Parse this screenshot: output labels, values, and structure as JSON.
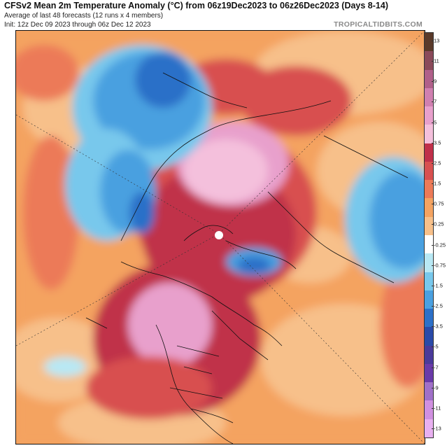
{
  "header": {
    "title": "CFSv2 Mean 2m Temperature Anomaly (°C) from 06z19Dec2023 to 06z26Dec2023 (Days 8-14)",
    "subtitle": "Average of last 48 forecasts (12 runs x 4 members)",
    "init": "Init: 12z Dec 09 2023 through 06z Dec 12 2023",
    "credit": "TROPICALTIDBITS.COM"
  },
  "map": {
    "projection": "polar-stereographic",
    "center": "north-pole",
    "pole_marker_color": "#ffffff"
  },
  "colorbar": {
    "ticks": [
      "13",
      "11",
      "9",
      "7",
      "5",
      "3.5",
      "2.5",
      "1.5",
      "0.75",
      "0.25",
      "-0.25",
      "-0.75",
      "-1.5",
      "-2.5",
      "-3.5",
      "-5",
      "-7",
      "-9",
      "-11",
      "-13"
    ],
    "colors": [
      "#5a3a2a",
      "#8a4a5a",
      "#b0608a",
      "#d080b0",
      "#e8a0cc",
      "#f4c0dc",
      "#c0304a",
      "#d85050",
      "#ec7a58",
      "#f4a361",
      "#f7c08a",
      "#ffffff",
      "#b8e8f4",
      "#78c8ec",
      "#4aa0e0",
      "#2c70c8",
      "#2a4aa8",
      "#4a3a9a",
      "#6a3aa8",
      "#a070c8",
      "#d090e0",
      "#e8b0f0"
    ]
  }
}
